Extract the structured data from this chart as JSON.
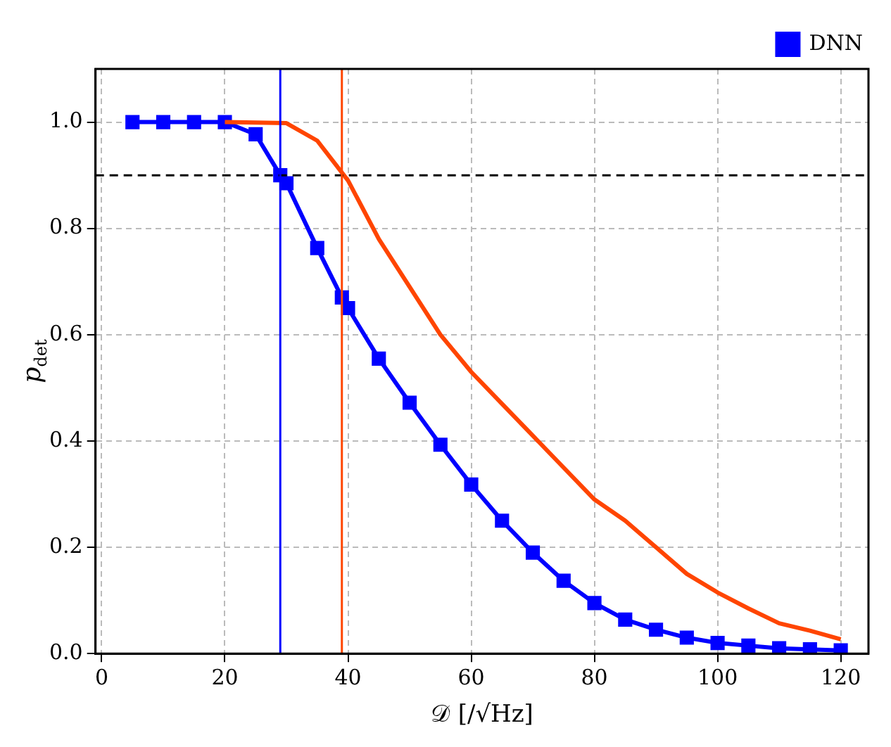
{
  "chart_data": {
    "type": "line",
    "xlabel": "𝒟 [/√Hz]",
    "ylabel": "p$_{det}$",
    "xlim": [
      -1,
      124.5
    ],
    "ylim": [
      0,
      1.1
    ],
    "xticks": [
      0,
      20,
      40,
      60,
      80,
      100,
      120
    ],
    "yticks": [
      {
        "value": 0,
        "label": "0.0"
      },
      {
        "value": 0.2,
        "label": "0.2"
      },
      {
        "value": 0.4,
        "label": "0.4"
      },
      {
        "value": 0.6,
        "label": "0.6"
      },
      {
        "value": 0.8,
        "label": "0.8"
      },
      {
        "value": 1,
        "label": "1.0"
      }
    ],
    "grid": true,
    "legend": "top right",
    "series": [
      {
        "color": "#ff4500",
        "marker": "none",
        "x": [
          20,
          30,
          35,
          40,
          45,
          50,
          55,
          60,
          65,
          70,
          75,
          80,
          85,
          90,
          95,
          100,
          105,
          110,
          115,
          120
        ],
        "values": [
          1,
          0.998,
          0.965,
          0.89,
          0.78,
          0.69,
          0.6,
          0.53,
          0.47,
          0.41,
          0.35,
          0.29,
          0.25,
          0.2,
          0.15,
          0.115,
          0.085,
          0.057,
          0.043,
          0.027
        ]
      },
      {
        "name": "DNN",
        "color": "#0000ff",
        "marker": "square",
        "x": [
          5,
          10,
          15,
          20,
          25,
          29,
          30,
          35,
          39,
          40,
          45,
          50,
          55,
          60,
          65,
          70,
          75,
          80,
          85,
          90,
          95,
          100,
          105,
          110,
          115,
          120
        ],
        "values": [
          1,
          1,
          1,
          1,
          0.977,
          0.9,
          0.885,
          0.763,
          0.67,
          0.65,
          0.555,
          0.472,
          0.393,
          0.318,
          0.25,
          0.19,
          0.137,
          0.095,
          0.064,
          0.045,
          0.03,
          0.02,
          0.015,
          0.01,
          0.008,
          0.006
        ]
      }
    ],
    "ref_lines": [
      {
        "axis": "y",
        "value": 0.9,
        "color": "#000000",
        "line_style": "dashed"
      },
      {
        "axis": "x",
        "value": 29,
        "color": "#0000ff",
        "line_style": "solid"
      },
      {
        "axis": "x",
        "value": 39,
        "color": "#ff4500",
        "line_style": "solid"
      }
    ]
  }
}
